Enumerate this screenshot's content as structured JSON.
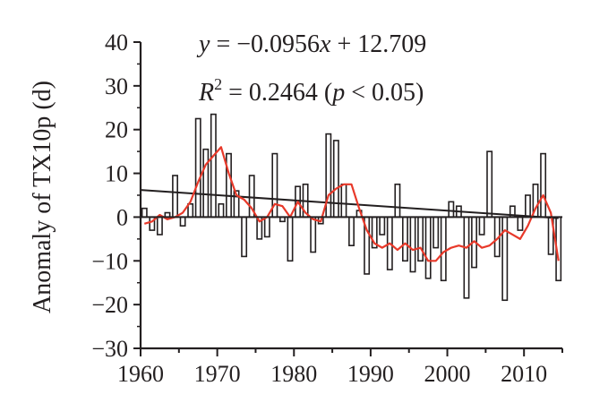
{
  "chart_data": {
    "type": "bar",
    "title": "",
    "xlabel": "",
    "ylabel": "Anomaly of TX10p (d)",
    "xlim": [
      1960,
      2015
    ],
    "ylim": [
      -30,
      40
    ],
    "x_ticks": [
      "1960",
      "1970",
      "1980",
      "1990",
      "2000",
      "2010"
    ],
    "y_ticks": [
      "−30",
      "−20",
      "−10",
      "0",
      "10",
      "20",
      "30",
      "40"
    ],
    "grid": false,
    "legend": "none",
    "annotations": {
      "equation_y": "y",
      "equation_x": "x",
      "equation_rest": "= −0.0956",
      "equation_tail": "+ 12.709",
      "r2_symbol": "R",
      "r2_sup": "2",
      "r2_value": "= 0.2464 (",
      "p_symbol": "p",
      "p_tail": "< 0.05)"
    },
    "years": [
      1960,
      1961,
      1962,
      1963,
      1964,
      1965,
      1966,
      1967,
      1968,
      1969,
      1970,
      1971,
      1972,
      1973,
      1974,
      1975,
      1976,
      1977,
      1978,
      1979,
      1980,
      1981,
      1982,
      1983,
      1984,
      1985,
      1986,
      1987,
      1988,
      1989,
      1990,
      1991,
      1992,
      1993,
      1994,
      1995,
      1996,
      1997,
      1998,
      1999,
      2000,
      2001,
      2002,
      2003,
      2004,
      2005,
      2006,
      2007,
      2008,
      2009,
      2010,
      2011,
      2012,
      2013,
      2014
    ],
    "anomaly": [
      2,
      -3,
      -4,
      1,
      9.5,
      -2,
      3,
      22.5,
      15.5,
      23.5,
      3,
      14.5,
      6,
      -9,
      9.5,
      -5,
      -4.5,
      14.5,
      -1,
      -10,
      7,
      7.5,
      -8,
      -1.5,
      19,
      17.5,
      7.5,
      -6.5,
      1.5,
      -13,
      -7,
      -4,
      -12,
      7.5,
      -10,
      -12.5,
      -10,
      -14,
      -7,
      -14.5,
      3.5,
      2.5,
      -18.5,
      -11.5,
      -4,
      15,
      -9,
      -19,
      2.5,
      -3,
      5,
      7.5,
      14.5,
      -8.5,
      -14.5
    ],
    "smooth": [
      -1.5,
      -1,
      0.5,
      -0.5,
      0,
      1,
      3.5,
      8,
      12,
      14,
      16,
      10,
      5,
      4,
      2,
      -1,
      0,
      3,
      2.5,
      0,
      3.5,
      1,
      -0.5,
      -1,
      5,
      6.5,
      7.5,
      7.5,
      2,
      -3,
      -6,
      -7,
      -6,
      -7.5,
      -6,
      -7.5,
      -7,
      -10,
      -10,
      -8,
      -7,
      -6.5,
      -7,
      -5.5,
      -7,
      -6.5,
      -5,
      -3,
      -4,
      -5,
      -2,
      2,
      5,
      1,
      -10
    ],
    "trend": {
      "slope": -0.0956,
      "intercept": 12.709,
      "x": [
        1960,
        2014
      ]
    },
    "colors": {
      "bars": "#231f20",
      "smooth": "#e8392a",
      "trend": "#231f20",
      "axis": "#231f20"
    }
  }
}
